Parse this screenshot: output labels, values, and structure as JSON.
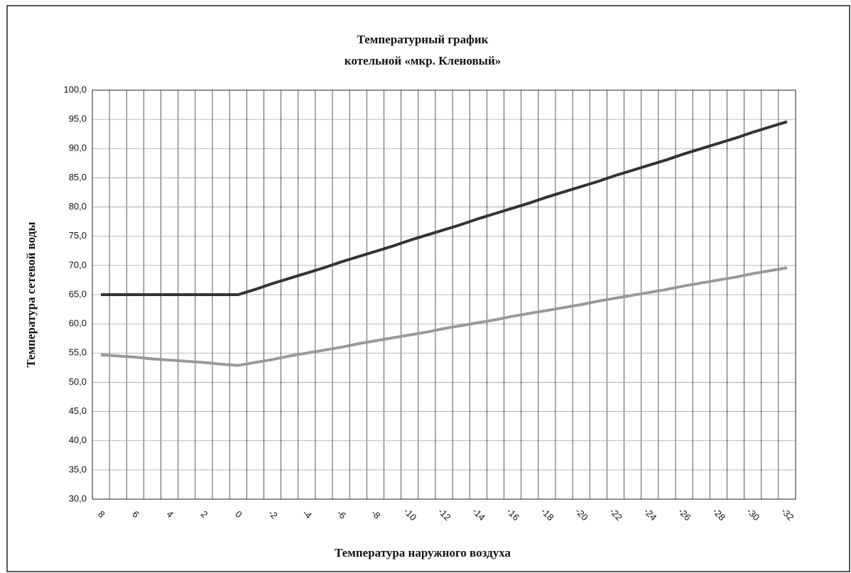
{
  "chart_data": {
    "type": "line",
    "title": [
      "Температурный график",
      "котельной «мкр. Кленовый»"
    ],
    "x_label": "Температура наружного воздуха",
    "y_label": "Температура сетевой воды",
    "categories": [
      8,
      null,
      6,
      null,
      4,
      null,
      2,
      null,
      0,
      null,
      -2,
      null,
      -4,
      null,
      -6,
      null,
      -8,
      null,
      -10,
      null,
      -12,
      null,
      -14,
      null,
      -16,
      null,
      -18,
      null,
      -20,
      null,
      -22,
      null,
      -24,
      null,
      -26,
      null,
      -28,
      null,
      -30,
      null,
      -32
    ],
    "series": [
      {
        "color": "#333333",
        "values": [
          65.0,
          65.0,
          65.0,
          65.0,
          65.0,
          65.0,
          65.0,
          65.0,
          65.0,
          65.9,
          66.9,
          67.8,
          68.7,
          69.6,
          70.6,
          71.5,
          72.4,
          73.3,
          74.3,
          75.2,
          76.1,
          77.0,
          78.0,
          78.9,
          79.8,
          80.7,
          81.7,
          82.6,
          83.5,
          84.4,
          85.4,
          86.3,
          87.2,
          88.1,
          89.1,
          90.0,
          90.9,
          91.8,
          92.8,
          93.7,
          94.6
        ]
      },
      {
        "color": "#999999",
        "values": [
          54.7,
          54.5,
          54.3,
          54.0,
          53.8,
          53.6,
          53.4,
          53.1,
          52.9,
          53.4,
          53.9,
          54.5,
          55.0,
          55.5,
          56.0,
          56.6,
          57.1,
          57.6,
          58.1,
          58.6,
          59.2,
          59.7,
          60.2,
          60.7,
          61.3,
          61.8,
          62.3,
          62.8,
          63.3,
          63.9,
          64.4,
          64.9,
          65.4,
          65.9,
          66.5,
          67.0,
          67.5,
          68.0,
          68.6,
          69.1,
          69.6
        ]
      }
    ],
    "ylim": [
      30,
      100
    ],
    "yticks": [
      {
        "value": 30,
        "label": "30,0"
      },
      {
        "value": 35,
        "label": "35,0"
      },
      {
        "value": 40,
        "label": "40,0"
      },
      {
        "value": 45,
        "label": "45,0"
      },
      {
        "value": 50,
        "label": "50,0"
      },
      {
        "value": 55,
        "label": "55,0"
      },
      {
        "value": 60,
        "label": "60,0"
      },
      {
        "value": 65,
        "label": "65,0"
      },
      {
        "value": 70,
        "label": "70,0"
      },
      {
        "value": 75,
        "label": "75,0"
      },
      {
        "value": 80,
        "label": "80,0"
      },
      {
        "value": 85,
        "label": "85,0"
      },
      {
        "value": 90,
        "label": "90,0"
      },
      {
        "value": 95,
        "label": "95,0"
      },
      {
        "value": 100,
        "label": "100,0"
      }
    ],
    "grid": true
  }
}
